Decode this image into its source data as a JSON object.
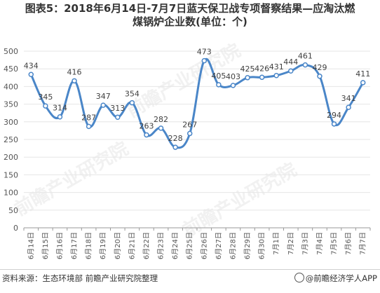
{
  "title_lines": [
    "图表5：2018年6月14日-7月7日蓝天保卫战专项督察结果—应淘汰燃",
    "煤锅炉企业数(单位：个)"
  ],
  "footer": {
    "source": "资料来源：生态环境部 前瞻产业研究院整理",
    "brand": "@前瞻经济学人APP"
  },
  "watermarks": [
    "前瞻产业研究院",
    "前瞻产业研究院",
    "前瞻产业研究院"
  ],
  "colors": {
    "line": "#4a86c8",
    "marker_fill": "#ffffff",
    "grid": "#e6e6e6",
    "axis": "#999999"
  },
  "chart_data": {
    "type": "line",
    "title": "图表5：2018年6月14日-7月7日蓝天保卫战专项督察结果—应淘汰燃煤锅炉企业数(单位：个)",
    "xlabel": "",
    "ylabel": "",
    "ylim": [
      0,
      500
    ],
    "yticks": [
      0,
      50,
      100,
      150,
      200,
      250,
      300,
      350,
      400,
      450,
      500
    ],
    "grid": true,
    "categories": [
      "6月14日",
      "6月15日",
      "6月16日",
      "6月17日",
      "6月18日",
      "6月19日",
      "6月20日",
      "6月21日",
      "6月22日",
      "6月23日",
      "6月24日",
      "6月25日",
      "6月26日",
      "6月27日",
      "6月28日",
      "6月29日",
      "6月30日",
      "7月1日",
      "7月2日",
      "7月3日",
      "7月4日",
      "7月5日",
      "7月6日",
      "7月7日"
    ],
    "series": [
      {
        "name": "",
        "values": [
          434,
          345,
          314,
          416,
          287,
          347,
          313,
          354,
          263,
          282,
          228,
          267,
          473,
          405,
          403,
          425,
          426,
          431,
          444,
          461,
          429,
          294,
          341,
          411
        ]
      }
    ]
  }
}
